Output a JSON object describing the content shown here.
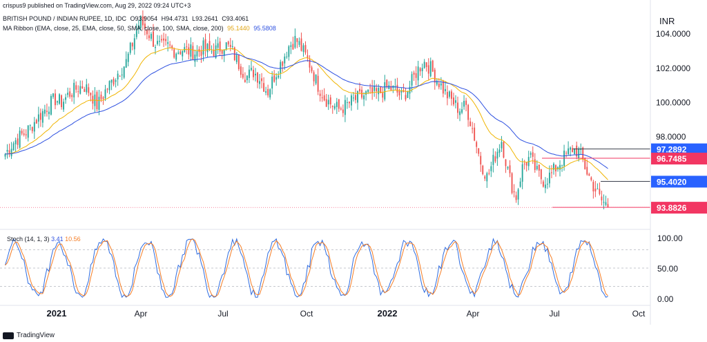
{
  "publish_line": "crispus9 published on TradingView.com, Aug 29, 2022 09:24 UTC+3",
  "symbol_line": {
    "name": "BRITISH POUND / INDIAN RUPEE, 1D, IDC",
    "open": "O93.9054",
    "high": "H94.4731",
    "low": "L93.2641",
    "close": "C93.4061"
  },
  "ribbon_line": {
    "label": "MA Ribbon (EMA, close, 25, EMA, close, 50, SMA, close, 100, SMA, close, 200)",
    "value1": "95.1440",
    "value2": "95.5808"
  },
  "stoch_line": {
    "label": "Stoch (14, 1, 3)",
    "k": "3.41",
    "d": "10.56"
  },
  "currency": "INR",
  "footer_brand": "TradingView",
  "colors": {
    "up": "#26a69a",
    "down": "#ef5350",
    "ema_fast": "#f0b400",
    "ema_slow": "#2d50e0",
    "stoch_k": "#2d6be0",
    "stoch_d": "#f57c23",
    "tag_blue": "#2962ff",
    "tag_red": "#f23662"
  },
  "chart_data": [
    {
      "type": "candlestick",
      "x_ticks": [
        "2021",
        "Apr",
        "Jul",
        "Oct",
        "2022",
        "Apr",
        "Jul",
        "Oct"
      ],
      "y_ticks": [
        "104.0000",
        "102.0000",
        "100.0000",
        "98.0000"
      ],
      "ylim": [
        93.0,
        105.5
      ],
      "series": [
        {
          "type": "candles",
          "close_path": [
            97.0,
            97.6,
            98.0,
            98.3,
            98.8,
            99.3,
            99.8,
            100.2,
            100.0,
            100.5,
            100.8,
            101.0,
            100.6,
            99.8,
            100.6,
            101.2,
            101.8,
            102.3,
            103.5,
            104.8,
            104.2,
            103.5,
            103.2,
            103.3,
            103.0,
            103.1,
            103.0,
            102.9,
            103.2,
            103.0,
            103.1,
            103.4,
            103.0,
            102.2,
            101.5,
            101.8,
            101.4,
            100.6,
            101.6,
            102.4,
            103.3,
            103.7,
            103.0,
            102.2,
            101.1,
            100.3,
            99.9,
            99.6,
            99.8,
            100.1,
            100.3,
            100.5,
            100.5,
            100.6,
            100.9,
            100.7,
            100.3,
            100.9,
            101.8,
            102.4,
            102.0,
            101.3,
            100.6,
            100.1,
            99.6,
            99.8,
            98.3,
            96.6,
            95.6,
            96.8,
            97.8,
            95.8,
            94.4,
            96.3,
            96.8,
            95.9,
            95.4,
            95.8,
            96.4,
            96.9,
            97.3,
            97.1,
            96.0,
            95.1,
            94.3,
            94.0
          ]
        },
        {
          "name": "95.1440",
          "type": "ema",
          "values_ref": "ema_fast"
        },
        {
          "name": "95.5808",
          "type": "ema",
          "values_ref": "ema_slow"
        }
      ],
      "price_tags": [
        {
          "value": "97.2892",
          "color": "#2962ff"
        },
        {
          "value": "96.7485",
          "color": "#f23662"
        },
        {
          "value": "95.4020",
          "color": "#2962ff"
        },
        {
          "value": "93.8826",
          "color": "#f23662"
        }
      ],
      "horizontal_levels": [
        97.29,
        96.75,
        95.4,
        93.88
      ]
    },
    {
      "type": "line",
      "ylim": [
        0,
        100
      ],
      "y_ticks": [
        "100.00",
        "50.00",
        "0.00"
      ],
      "dashed_levels": [
        80,
        50,
        20
      ]
    }
  ]
}
